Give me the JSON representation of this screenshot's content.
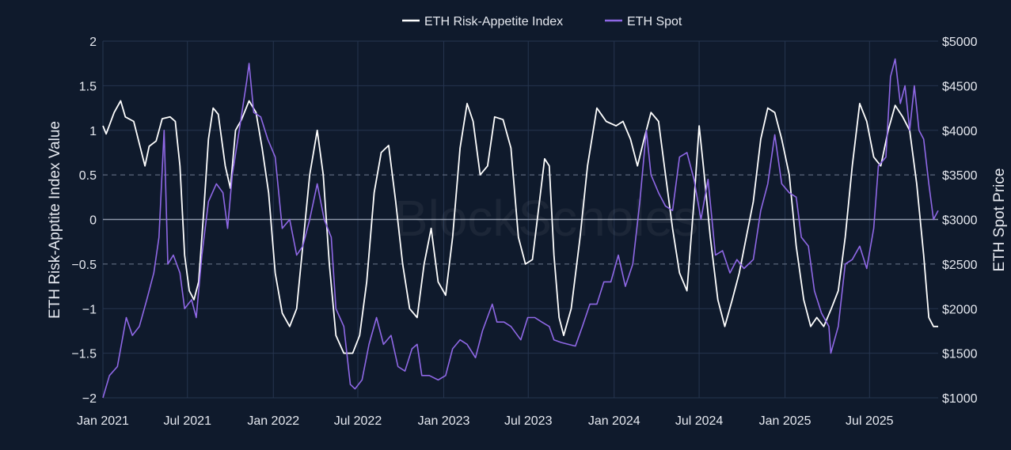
{
  "chart_data": {
    "type": "line",
    "watermark": "BlockScholes",
    "legend_position": "top-center",
    "grid": true,
    "x_ticks": [
      "Jan 2021",
      "Jul 2021",
      "Jan 2022",
      "Jul 2022",
      "Jan 2023",
      "Jul 2023",
      "Jan 2024",
      "Jul 2024",
      "Jan 2025",
      "Jul 2025"
    ],
    "y_left": {
      "label": "ETH Risk-Apptite Index Value",
      "range": [
        -2,
        2
      ],
      "ticks": [
        "2",
        "1.5",
        "1",
        "0.5",
        "0",
        "−0.5",
        "−1",
        "−1.5",
        "−2"
      ],
      "tick_values": [
        2,
        1.5,
        1,
        0.5,
        0,
        -0.5,
        -1,
        -1.5,
        -2
      ]
    },
    "y_right": {
      "label": "ETH Spot Price",
      "range": [
        1000,
        5000
      ],
      "ticks": [
        "$5000",
        "$4500",
        "$4000",
        "$3500",
        "$3000",
        "$2500",
        "$2000",
        "$1500",
        "$1000"
      ],
      "tick_values": [
        5000,
        4500,
        4000,
        3500,
        3000,
        2500,
        2000,
        1500,
        1000
      ]
    },
    "x_range": [
      "2021-01-01",
      "2025-11-25"
    ],
    "series": [
      {
        "name": "ETH Risk-Appetite Index",
        "color": "#ffffff",
        "axis": "left",
        "points": [
          [
            "2021-01-01",
            1.05
          ],
          [
            "2021-01-08",
            0.96
          ],
          [
            "2021-01-25",
            1.2
          ],
          [
            "2021-02-08",
            1.33
          ],
          [
            "2021-02-18",
            1.15
          ],
          [
            "2021-03-08",
            1.1
          ],
          [
            "2021-03-20",
            0.85
          ],
          [
            "2021-04-01",
            0.6
          ],
          [
            "2021-04-10",
            0.82
          ],
          [
            "2021-04-25",
            0.88
          ],
          [
            "2021-05-08",
            1.13
          ],
          [
            "2021-05-25",
            1.15
          ],
          [
            "2021-06-05",
            1.1
          ],
          [
            "2021-06-15",
            0.6
          ],
          [
            "2021-06-25",
            -0.4
          ],
          [
            "2021-07-05",
            -0.8
          ],
          [
            "2021-07-15",
            -0.9
          ],
          [
            "2021-07-25",
            -0.7
          ],
          [
            "2021-08-05",
            0.1
          ],
          [
            "2021-08-15",
            0.9
          ],
          [
            "2021-08-25",
            1.25
          ],
          [
            "2021-09-05",
            1.18
          ],
          [
            "2021-09-20",
            0.6
          ],
          [
            "2021-10-01",
            0.35
          ],
          [
            "2021-10-12",
            1.0
          ],
          [
            "2021-10-25",
            1.12
          ],
          [
            "2021-11-10",
            1.33
          ],
          [
            "2021-11-25",
            1.2
          ],
          [
            "2021-12-08",
            0.8
          ],
          [
            "2021-12-22",
            0.3
          ],
          [
            "2022-01-05",
            -0.6
          ],
          [
            "2022-01-20",
            -1.05
          ],
          [
            "2022-02-05",
            -1.2
          ],
          [
            "2022-02-20",
            -1.0
          ],
          [
            "2022-03-05",
            -0.3
          ],
          [
            "2022-03-20",
            0.5
          ],
          [
            "2022-04-05",
            1.0
          ],
          [
            "2022-04-18",
            0.5
          ],
          [
            "2022-05-01",
            -0.5
          ],
          [
            "2022-05-15",
            -1.3
          ],
          [
            "2022-06-01",
            -1.5
          ],
          [
            "2022-06-20",
            -1.5
          ],
          [
            "2022-07-05",
            -1.3
          ],
          [
            "2022-07-20",
            -0.7
          ],
          [
            "2022-08-05",
            0.3
          ],
          [
            "2022-08-20",
            0.75
          ],
          [
            "2022-09-05",
            0.83
          ],
          [
            "2022-09-20",
            0.2
          ],
          [
            "2022-10-05",
            -0.5
          ],
          [
            "2022-10-20",
            -1.0
          ],
          [
            "2022-11-05",
            -1.1
          ],
          [
            "2022-11-20",
            -0.5
          ],
          [
            "2022-12-05",
            -0.1
          ],
          [
            "2022-12-20",
            -0.7
          ],
          [
            "2023-01-05",
            -0.85
          ],
          [
            "2023-01-20",
            -0.2
          ],
          [
            "2023-02-05",
            0.8
          ],
          [
            "2023-02-20",
            1.3
          ],
          [
            "2023-03-05",
            1.1
          ],
          [
            "2023-03-20",
            0.5
          ],
          [
            "2023-04-05",
            0.6
          ],
          [
            "2023-04-20",
            1.15
          ],
          [
            "2023-05-08",
            1.12
          ],
          [
            "2023-05-25",
            0.8
          ],
          [
            "2023-06-10",
            -0.2
          ],
          [
            "2023-06-25",
            -0.5
          ],
          [
            "2023-07-10",
            -0.45
          ],
          [
            "2023-07-25",
            0.2
          ],
          [
            "2023-08-05",
            0.68
          ],
          [
            "2023-08-15",
            0.6
          ],
          [
            "2023-08-25",
            -0.4
          ],
          [
            "2023-09-05",
            -1.1
          ],
          [
            "2023-09-15",
            -1.3
          ],
          [
            "2023-10-01",
            -1.0
          ],
          [
            "2023-10-20",
            -0.2
          ],
          [
            "2023-11-05",
            0.6
          ],
          [
            "2023-11-25",
            1.25
          ],
          [
            "2023-12-15",
            1.1
          ],
          [
            "2024-01-05",
            1.05
          ],
          [
            "2024-01-20",
            1.1
          ],
          [
            "2024-02-05",
            0.9
          ],
          [
            "2024-02-20",
            0.6
          ],
          [
            "2024-03-05",
            0.9
          ],
          [
            "2024-03-20",
            1.2
          ],
          [
            "2024-04-05",
            1.1
          ],
          [
            "2024-04-20",
            0.5
          ],
          [
            "2024-05-05",
            -0.1
          ],
          [
            "2024-05-20",
            -0.6
          ],
          [
            "2024-06-05",
            -0.8
          ],
          [
            "2024-06-20",
            0.2
          ],
          [
            "2024-07-01",
            1.05
          ],
          [
            "2024-07-10",
            0.6
          ],
          [
            "2024-07-25",
            -0.2
          ],
          [
            "2024-08-10",
            -0.9
          ],
          [
            "2024-08-25",
            -1.2
          ],
          [
            "2024-09-10",
            -0.9
          ],
          [
            "2024-09-25",
            -0.6
          ],
          [
            "2024-10-10",
            -0.2
          ],
          [
            "2024-10-25",
            0.2
          ],
          [
            "2024-11-10",
            0.9
          ],
          [
            "2024-11-25",
            1.25
          ],
          [
            "2024-12-10",
            1.2
          ],
          [
            "2024-12-25",
            0.9
          ],
          [
            "2025-01-10",
            0.5
          ],
          [
            "2025-01-25",
            -0.3
          ],
          [
            "2025-02-10",
            -0.9
          ],
          [
            "2025-02-25",
            -1.2
          ],
          [
            "2025-03-10",
            -1.1
          ],
          [
            "2025-03-25",
            -1.2
          ],
          [
            "2025-04-10",
            -1.0
          ],
          [
            "2025-04-25",
            -0.8
          ],
          [
            "2025-05-10",
            -0.2
          ],
          [
            "2025-05-25",
            0.6
          ],
          [
            "2025-06-10",
            1.3
          ],
          [
            "2025-06-25",
            1.1
          ],
          [
            "2025-07-10",
            0.7
          ],
          [
            "2025-07-25",
            0.6
          ],
          [
            "2025-08-10",
            1.0
          ],
          [
            "2025-08-25",
            1.28
          ],
          [
            "2025-09-10",
            1.15
          ],
          [
            "2025-09-25",
            1.0
          ],
          [
            "2025-10-10",
            0.4
          ],
          [
            "2025-10-25",
            -0.4
          ],
          [
            "2025-11-05",
            -1.1
          ],
          [
            "2025-11-15",
            -1.2
          ],
          [
            "2025-11-25",
            -1.2
          ]
        ]
      },
      {
        "name": "ETH Spot",
        "color": "#8f68e6",
        "axis": "right",
        "points": [
          [
            "2021-01-01",
            1000
          ],
          [
            "2021-01-15",
            1250
          ],
          [
            "2021-02-01",
            1350
          ],
          [
            "2021-02-20",
            1900
          ],
          [
            "2021-03-05",
            1700
          ],
          [
            "2021-03-20",
            1800
          ],
          [
            "2021-04-05",
            2100
          ],
          [
            "2021-04-20",
            2400
          ],
          [
            "2021-05-01",
            2800
          ],
          [
            "2021-05-12",
            4000
          ],
          [
            "2021-05-20",
            2500
          ],
          [
            "2021-06-01",
            2600
          ],
          [
            "2021-06-15",
            2400
          ],
          [
            "2021-06-25",
            2000
          ],
          [
            "2021-07-10",
            2100
          ],
          [
            "2021-07-20",
            1900
          ],
          [
            "2021-08-01",
            2600
          ],
          [
            "2021-08-15",
            3200
          ],
          [
            "2021-09-01",
            3400
          ],
          [
            "2021-09-15",
            3300
          ],
          [
            "2021-09-25",
            2900
          ],
          [
            "2021-10-05",
            3500
          ],
          [
            "2021-10-20",
            4000
          ],
          [
            "2021-11-05",
            4550
          ],
          [
            "2021-11-10",
            4750
          ],
          [
            "2021-11-20",
            4200
          ],
          [
            "2021-12-05",
            4150
          ],
          [
            "2021-12-20",
            3900
          ],
          [
            "2022-01-05",
            3700
          ],
          [
            "2022-01-20",
            2900
          ],
          [
            "2022-02-05",
            3000
          ],
          [
            "2022-02-20",
            2600
          ],
          [
            "2022-03-05",
            2700
          ],
          [
            "2022-03-20",
            3000
          ],
          [
            "2022-04-05",
            3400
          ],
          [
            "2022-04-20",
            3000
          ],
          [
            "2022-05-05",
            2800
          ],
          [
            "2022-05-15",
            2000
          ],
          [
            "2022-06-01",
            1800
          ],
          [
            "2022-06-15",
            1150
          ],
          [
            "2022-06-25",
            1100
          ],
          [
            "2022-07-10",
            1200
          ],
          [
            "2022-07-25",
            1600
          ],
          [
            "2022-08-10",
            1900
          ],
          [
            "2022-08-25",
            1600
          ],
          [
            "2022-09-10",
            1700
          ],
          [
            "2022-09-25",
            1350
          ],
          [
            "2022-10-10",
            1300
          ],
          [
            "2022-10-25",
            1550
          ],
          [
            "2022-11-05",
            1600
          ],
          [
            "2022-11-15",
            1250
          ],
          [
            "2022-12-01",
            1250
          ],
          [
            "2022-12-20",
            1200
          ],
          [
            "2023-01-05",
            1250
          ],
          [
            "2023-01-20",
            1550
          ],
          [
            "2023-02-05",
            1650
          ],
          [
            "2023-02-20",
            1600
          ],
          [
            "2023-03-10",
            1450
          ],
          [
            "2023-03-25",
            1750
          ],
          [
            "2023-04-15",
            2050
          ],
          [
            "2023-04-25",
            1850
          ],
          [
            "2023-05-10",
            1850
          ],
          [
            "2023-05-25",
            1800
          ],
          [
            "2023-06-15",
            1650
          ],
          [
            "2023-06-30",
            1900
          ],
          [
            "2023-07-15",
            1900
          ],
          [
            "2023-07-30",
            1850
          ],
          [
            "2023-08-15",
            1800
          ],
          [
            "2023-08-25",
            1650
          ],
          [
            "2023-09-10",
            1620
          ],
          [
            "2023-09-25",
            1600
          ],
          [
            "2023-10-10",
            1580
          ],
          [
            "2023-10-25",
            1800
          ],
          [
            "2023-11-10",
            2050
          ],
          [
            "2023-11-25",
            2050
          ],
          [
            "2023-12-10",
            2300
          ],
          [
            "2023-12-25",
            2300
          ],
          [
            "2024-01-10",
            2600
          ],
          [
            "2024-01-25",
            2250
          ],
          [
            "2024-02-10",
            2500
          ],
          [
            "2024-02-25",
            3200
          ],
          [
            "2024-03-10",
            4000
          ],
          [
            "2024-03-20",
            3500
          ],
          [
            "2024-04-05",
            3300
          ],
          [
            "2024-04-20",
            3150
          ],
          [
            "2024-05-05",
            3100
          ],
          [
            "2024-05-20",
            3700
          ],
          [
            "2024-06-05",
            3750
          ],
          [
            "2024-06-20",
            3450
          ],
          [
            "2024-07-05",
            3000
          ],
          [
            "2024-07-20",
            3450
          ],
          [
            "2024-08-05",
            2600
          ],
          [
            "2024-08-20",
            2650
          ],
          [
            "2024-09-05",
            2400
          ],
          [
            "2024-09-20",
            2550
          ],
          [
            "2024-10-05",
            2450
          ],
          [
            "2024-10-25",
            2550
          ],
          [
            "2024-11-10",
            3100
          ],
          [
            "2024-11-25",
            3400
          ],
          [
            "2024-12-10",
            3950
          ],
          [
            "2024-12-25",
            3400
          ],
          [
            "2025-01-10",
            3300
          ],
          [
            "2025-01-25",
            3250
          ],
          [
            "2025-02-05",
            2800
          ],
          [
            "2025-02-20",
            2700
          ],
          [
            "2025-03-05",
            2200
          ],
          [
            "2025-03-20",
            1950
          ],
          [
            "2025-04-05",
            1800
          ],
          [
            "2025-04-09",
            1500
          ],
          [
            "2025-04-25",
            1800
          ],
          [
            "2025-05-10",
            2500
          ],
          [
            "2025-05-25",
            2550
          ],
          [
            "2025-06-10",
            2700
          ],
          [
            "2025-06-25",
            2450
          ],
          [
            "2025-07-10",
            2900
          ],
          [
            "2025-07-20",
            3600
          ],
          [
            "2025-08-05",
            3700
          ],
          [
            "2025-08-15",
            4600
          ],
          [
            "2025-08-25",
            4800
          ],
          [
            "2025-09-05",
            4300
          ],
          [
            "2025-09-15",
            4500
          ],
          [
            "2025-09-25",
            4000
          ],
          [
            "2025-10-05",
            4500
          ],
          [
            "2025-10-15",
            4000
          ],
          [
            "2025-10-25",
            3900
          ],
          [
            "2025-11-05",
            3400
          ],
          [
            "2025-11-15",
            3000
          ],
          [
            "2025-11-25",
            3100
          ]
        ]
      }
    ]
  }
}
